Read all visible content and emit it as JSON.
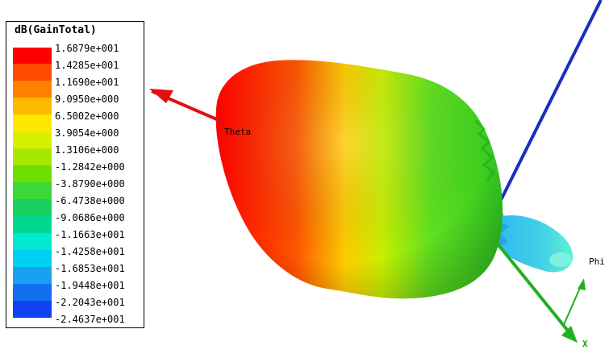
{
  "legend": {
    "title": "dB(GainTotal)",
    "values": [
      "1.6879e+001",
      "1.4285e+001",
      "1.1690e+001",
      "9.0950e+000",
      "6.5002e+000",
      "3.9054e+000",
      "1.3106e+000",
      "-1.2842e+000",
      "-3.8790e+000",
      "-6.4738e+000",
      "-9.0686e+000",
      "-1.1663e+001",
      "-1.4258e+001",
      "-1.6853e+001",
      "-1.9448e+001",
      "-2.2043e+001",
      "-2.4637e+001"
    ],
    "colors": [
      "#ff0000",
      "#ff4a00",
      "#ff8000",
      "#ffb800",
      "#ffe800",
      "#d8f000",
      "#a8e800",
      "#6ee000",
      "#3cd838",
      "#18d060",
      "#00d890",
      "#00e8d0",
      "#00d0f0",
      "#1aa0f0",
      "#1070f0",
      "#1040f0",
      "#0000ff"
    ]
  },
  "axes": {
    "theta_label": "Theta",
    "phi_label": "Phi",
    "x_label": "X"
  }
}
